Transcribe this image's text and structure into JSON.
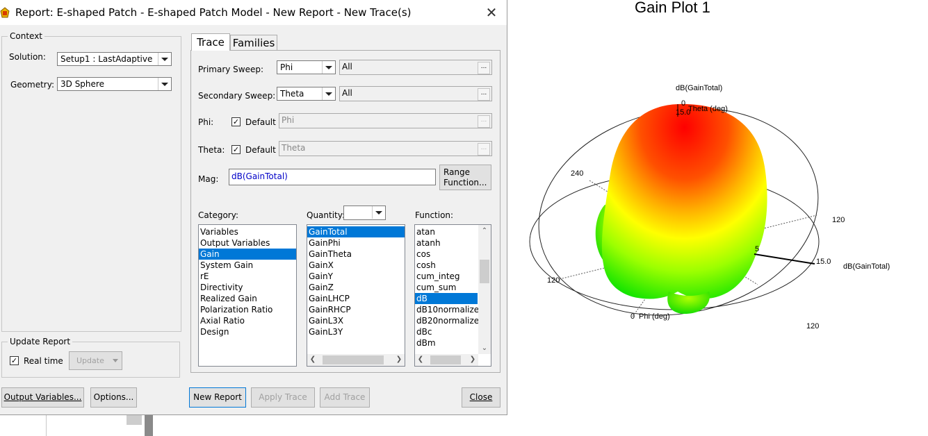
{
  "dialog": {
    "title": "Report: E-shaped Patch - E-shaped Patch Model - New Report - New Trace(s)",
    "context": {
      "group_title": "Context",
      "solution_label": "Solution:",
      "solution_value": "Setup1 : LastAdaptive",
      "geometry_label": "Geometry:",
      "geometry_value": "3D Sphere"
    },
    "update_report": {
      "group_title": "Update Report",
      "realtime_label": "Real time",
      "realtime_checked": true,
      "update_button": "Update"
    },
    "tabs": [
      {
        "label": "Trace",
        "active": true
      },
      {
        "label": "Families",
        "active": false
      }
    ],
    "trace": {
      "primary_sweep_label": "Primary Sweep:",
      "primary_sweep_value": "Phi",
      "primary_sweep_range": "All",
      "secondary_sweep_label": "Secondary Sweep:",
      "secondary_sweep_value": "Theta",
      "secondary_sweep_range": "All",
      "phi_label": "Phi:",
      "phi_default_label": "Default",
      "phi_value": "Phi",
      "theta_label": "Theta:",
      "theta_default_label": "Default",
      "theta_value": "Theta",
      "mag_label": "Mag:",
      "mag_value": "dB(GainTotal)",
      "range_function_button_line1": "Range",
      "range_function_button_line2": "Function...",
      "ellipsis": "...",
      "category_label": "Category:",
      "quantity_label": "Quantity:",
      "function_label": "Function:",
      "categories": [
        "Variables",
        "Output Variables",
        "Gain",
        "System Gain",
        "rE",
        "Directivity",
        "Realized Gain",
        "Polarization Ratio",
        "Axial Ratio",
        "Design"
      ],
      "selected_category": "Gain",
      "quantities": [
        "GainTotal",
        "GainPhi",
        "GainTheta",
        "GainX",
        "GainY",
        "GainZ",
        "GainLHCP",
        "GainRHCP",
        "GainL3X",
        "GainL3Y"
      ],
      "selected_quantity": "GainTotal",
      "functions": [
        "atan",
        "atanh",
        "cos",
        "cosh",
        "cum_integ",
        "cum_sum",
        "dB",
        "dB10normalize",
        "dB20normalize",
        "dBc",
        "dBm"
      ],
      "selected_function": "dB"
    },
    "buttons": {
      "output_variables": "Output Variables...",
      "options": "Options...",
      "new_report": "New Report",
      "apply_trace": "Apply Trace",
      "add_trace": "Add Trace",
      "close": "Close"
    }
  },
  "plot": {
    "title": "Gain Plot 1",
    "labels": {
      "top_quantity": "dB(GainTotal)",
      "theta_axis": "Theta (deg)",
      "right_quantity": "dB(GainTotal)",
      "phi_axis": "Phi (deg)",
      "tick_0_top": "0",
      "tick_15_top": "15.0",
      "tick_240": "240",
      "tick_120_right": "120",
      "tick_120_left": "120",
      "tick_120_bottom": "120",
      "tick_5": "5",
      "tick_15_right": "15.0",
      "tick_0_bottom": "0"
    },
    "colors": {
      "max": "#ff0000",
      "mid": "#ffff00",
      "min": "#00ff00"
    }
  }
}
